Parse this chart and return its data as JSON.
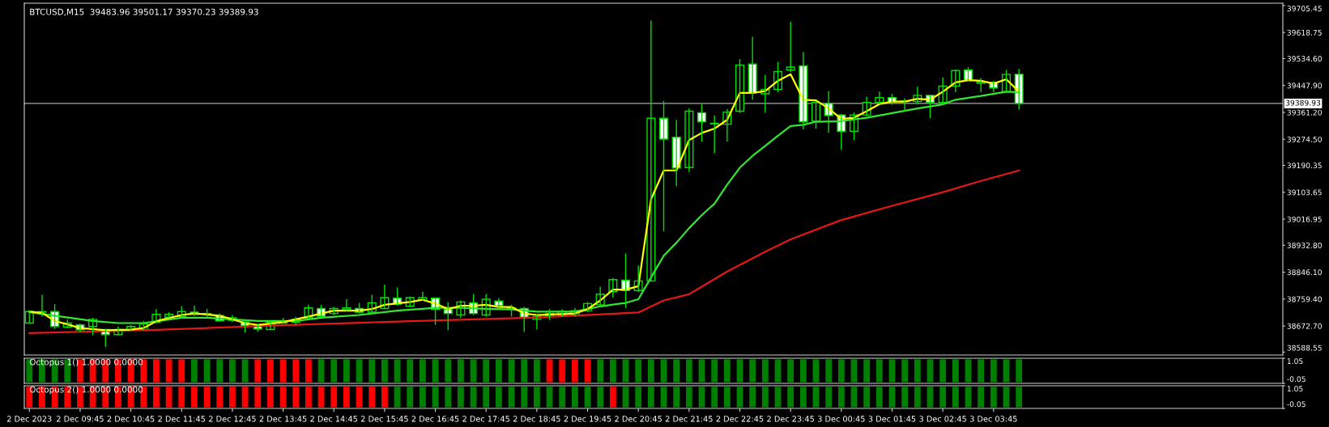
{
  "chart_data": [
    {
      "type": "candlestick",
      "title": "BTCUSD,M15  39483.96 39501.17 39370.23 39389.93",
      "tick_labels": "y",
      "x": [
        "2023-12-02T08:45",
        "2023-12-02T09:00",
        "2023-12-02T09:15",
        "2023-12-02T09:30",
        "2023-12-02T09:45",
        "2023-12-02T10:00",
        "2023-12-02T10:15",
        "2023-12-02T10:30",
        "2023-12-02T10:45",
        "2023-12-02T11:00",
        "2023-12-02T11:15",
        "2023-12-02T11:30",
        "2023-12-02T11:45",
        "2023-12-02T12:00",
        "2023-12-02T12:15",
        "2023-12-02T12:30",
        "2023-12-02T12:45",
        "2023-12-02T13:00",
        "2023-12-02T13:15",
        "2023-12-02T13:30",
        "2023-12-02T13:45",
        "2023-12-02T14:00",
        "2023-12-02T14:15",
        "2023-12-02T14:30",
        "2023-12-02T14:45",
        "2023-12-02T15:00",
        "2023-12-02T15:15",
        "2023-12-02T15:30",
        "2023-12-02T15:45",
        "2023-12-02T16:00",
        "2023-12-02T16:15",
        "2023-12-02T16:30",
        "2023-12-02T16:45",
        "2023-12-02T17:00",
        "2023-12-02T17:15",
        "2023-12-02T17:30",
        "2023-12-02T17:45",
        "2023-12-02T18:00",
        "2023-12-02T18:15",
        "2023-12-02T18:30",
        "2023-12-02T18:45",
        "2023-12-02T19:00",
        "2023-12-02T19:15",
        "2023-12-02T19:30",
        "2023-12-02T19:45",
        "2023-12-02T20:00",
        "2023-12-02T20:15",
        "2023-12-02T20:30",
        "2023-12-02T20:45",
        "2023-12-02T21:00",
        "2023-12-02T21:15",
        "2023-12-02T21:30",
        "2023-12-02T21:45",
        "2023-12-02T22:00",
        "2023-12-02T22:15",
        "2023-12-02T22:30",
        "2023-12-02T22:45",
        "2023-12-02T23:00",
        "2023-12-02T23:15",
        "2023-12-02T23:30",
        "2023-12-02T23:45",
        "2023-12-03T00:00",
        "2023-12-03T00:15",
        "2023-12-03T00:30",
        "2023-12-03T00:45",
        "2023-12-03T01:00",
        "2023-12-03T01:15",
        "2023-12-03T01:30",
        "2023-12-03T01:45",
        "2023-12-03T02:00",
        "2023-12-03T02:15",
        "2023-12-03T02:30",
        "2023-12-03T02:45",
        "2023-12-03T03:00",
        "2023-12-03T03:15",
        "2023-12-03T03:30",
        "2023-12-03T03:45",
        "2023-12-03T04:00",
        "2023-12-03T04:15"
      ],
      "ohlc": [
        [
          38682,
          38722,
          38680,
          38719
        ],
        [
          38717,
          38773,
          38703,
          38719
        ],
        [
          38719,
          38743,
          38663,
          38671
        ],
        [
          38669,
          38694,
          38666,
          38682
        ],
        [
          38676,
          38680,
          38652,
          38660
        ],
        [
          38671,
          38699,
          38643,
          38694
        ],
        [
          38661,
          38663,
          38606,
          38645
        ],
        [
          38645,
          38671,
          38643,
          38661
        ],
        [
          38661,
          38676,
          38657,
          38671
        ],
        [
          38661,
          38689,
          38657,
          38680
        ],
        [
          38685,
          38727,
          38680,
          38710
        ],
        [
          38701,
          38717,
          38699,
          38710
        ],
        [
          38703,
          38736,
          38699,
          38719
        ],
        [
          38717,
          38738,
          38705,
          38710
        ],
        [
          38711,
          38728,
          38702,
          38713
        ],
        [
          38706,
          38713,
          38688,
          38689
        ],
        [
          38691,
          38708,
          38685,
          38699
        ],
        [
          38685,
          38694,
          38652,
          38673
        ],
        [
          38675,
          38680,
          38654,
          38663
        ],
        [
          38661,
          38690,
          38660,
          38685
        ],
        [
          38682,
          38699,
          38680,
          38689
        ],
        [
          38685,
          38703,
          38676,
          38694
        ],
        [
          38699,
          38741,
          38694,
          38731
        ],
        [
          38729,
          38741,
          38699,
          38704
        ],
        [
          38713,
          38734,
          38708,
          38729
        ],
        [
          38725,
          38759,
          38719,
          38731
        ],
        [
          38729,
          38747,
          38713,
          38717
        ],
        [
          38717,
          38773,
          38713,
          38747
        ],
        [
          38729,
          38806,
          38727,
          38764
        ],
        [
          38762,
          38797,
          38738,
          38743
        ],
        [
          38736,
          38768,
          38734,
          38764
        ],
        [
          38756,
          38783,
          38754,
          38764
        ],
        [
          38762,
          38764,
          38676,
          38727
        ],
        [
          38727,
          38750,
          38659,
          38713
        ],
        [
          38708,
          38755,
          38699,
          38750
        ],
        [
          38747,
          38775,
          38708,
          38713
        ],
        [
          38708,
          38775,
          38703,
          38759
        ],
        [
          38753,
          38762,
          38731,
          38738
        ],
        [
          38731,
          38741,
          38703,
          38728
        ],
        [
          38729,
          38734,
          38654,
          38701
        ],
        [
          38694,
          38710,
          38662,
          38703
        ],
        [
          38704,
          38727,
          38692,
          38713
        ],
        [
          38708,
          38727,
          38703,
          38719
        ],
        [
          38708,
          38731,
          38703,
          38722
        ],
        [
          38722,
          38750,
          38717,
          38745
        ],
        [
          38741,
          38799,
          38736,
          38775
        ],
        [
          38783,
          38827,
          38764,
          38822
        ],
        [
          38820,
          38906,
          38731,
          38787
        ],
        [
          38787,
          38868,
          38782,
          38818
        ],
        [
          38818,
          39657,
          38815,
          39342
        ],
        [
          39342,
          39398,
          38978,
          39275
        ],
        [
          39281,
          39337,
          39123,
          39182
        ],
        [
          39183,
          39374,
          39169,
          39365
        ],
        [
          39360,
          39388,
          39267,
          39331
        ],
        [
          39326,
          39351,
          39230,
          39324
        ],
        [
          39323,
          39372,
          39267,
          39362
        ],
        [
          39365,
          39533,
          39359,
          39514
        ],
        [
          39517,
          39605,
          39402,
          39424
        ],
        [
          39421,
          39482,
          39360,
          39435
        ],
        [
          39435,
          39524,
          39426,
          39493
        ],
        [
          39498,
          39654,
          39491,
          39507
        ],
        [
          39511,
          39556,
          39306,
          39331
        ],
        [
          39333,
          39398,
          39309,
          39393
        ],
        [
          39390,
          39430,
          39295,
          39351
        ],
        [
          39353,
          39356,
          39241,
          39300
        ],
        [
          39300,
          39361,
          39272,
          39353
        ],
        [
          39353,
          39412,
          39349,
          39393
        ],
        [
          39393,
          39428,
          39388,
          39409
        ],
        [
          39409,
          39421,
          39386,
          39396
        ],
        [
          39396,
          39407,
          39365,
          39398
        ],
        [
          39396,
          39444,
          39388,
          39416
        ],
        [
          39416,
          39418,
          39342,
          39393
        ],
        [
          39393,
          39474,
          39388,
          39446
        ],
        [
          39446,
          39500,
          39426,
          39496
        ],
        [
          39498,
          39507,
          39461,
          39465
        ],
        [
          39455,
          39472,
          39426,
          39460
        ],
        [
          39458,
          39463,
          39426,
          39440
        ],
        [
          39428,
          39498,
          39426,
          39484
        ],
        [
          39483.96,
          39501.17,
          39370.23,
          39389.93
        ]
      ],
      "series": [
        {
          "type": "line",
          "color": "#e01818",
          "x": [
            "2023-12-02T08:45",
            "2023-12-02T11:15",
            "2023-12-02T13:45",
            "2023-12-02T16:15",
            "2023-12-02T18:45",
            "2023-12-02T20:45",
            "2023-12-02T21:15",
            "2023-12-02T21:45",
            "2023-12-02T22:30",
            "2023-12-02T23:15",
            "2023-12-02T23:45",
            "2023-12-03T00:45",
            "2023-12-03T01:45",
            "2023-12-03T02:45",
            "2023-12-03T03:30",
            "2023-12-03T04:15"
          ],
          "values": [
            38650,
            38660,
            38675,
            38688,
            38700,
            38716,
            38755,
            38775,
            38848,
            38912,
            38952,
            39014,
            39060,
            39104,
            39140,
            39174
          ]
        },
        {
          "type": "line",
          "color": "#32e632",
          "x": [
            "2023-12-02T08:45",
            "2023-12-02T09:15",
            "2023-12-02T10:00",
            "2023-12-02T10:30",
            "2023-12-02T11:00",
            "2023-12-02T11:45",
            "2023-12-02T12:15",
            "2023-12-02T12:45",
            "2023-12-02T13:15",
            "2023-12-02T14:00",
            "2023-12-02T14:30",
            "2023-12-02T15:15",
            "2023-12-02T16:00",
            "2023-12-02T16:45",
            "2023-12-02T17:15",
            "2023-12-02T17:45",
            "2023-12-02T18:15",
            "2023-12-02T18:45",
            "2023-12-02T19:30",
            "2023-12-02T20:00",
            "2023-12-02T20:30",
            "2023-12-02T20:45",
            "2023-12-02T21:00",
            "2023-12-02T21:15",
            "2023-12-02T21:30",
            "2023-12-02T21:45",
            "2023-12-02T22:00",
            "2023-12-02T22:15",
            "2023-12-02T22:30",
            "2023-12-02T22:45",
            "2023-12-02T23:00",
            "2023-12-02T23:15",
            "2023-12-02T23:30",
            "2023-12-02T23:45",
            "2023-12-03T00:00",
            "2023-12-03T00:15",
            "2023-12-03T00:45",
            "2023-12-03T01:15",
            "2023-12-03T01:45",
            "2023-12-03T02:15",
            "2023-12-03T02:45",
            "2023-12-03T03:00",
            "2023-12-03T03:30",
            "2023-12-03T04:00",
            "2023-12-03T04:15"
          ],
          "values": [
            38717,
            38706,
            38689,
            38682,
            38682,
            38699,
            38699,
            38694,
            38689,
            38689,
            38699,
            38708,
            38722,
            38731,
            38731,
            38728,
            38726,
            38719,
            38719,
            38736,
            38747,
            38759,
            38829,
            38899,
            38941,
            38988,
            39030,
            39067,
            39128,
            39183,
            39221,
            39253,
            39286,
            39317,
            39321,
            39331,
            39333,
            39344,
            39359,
            39374,
            39387,
            39402,
            39414,
            39428,
            39426
          ]
        },
        {
          "type": "line",
          "color": "#ffff00",
          "x": [
            "2023-12-02T08:45",
            "2023-12-02T09:00",
            "2023-12-02T09:15",
            "2023-12-02T09:45",
            "2023-12-02T10:15",
            "2023-12-02T10:45",
            "2023-12-02T11:00",
            "2023-12-02T11:15",
            "2023-12-02T11:45",
            "2023-12-02T12:00",
            "2023-12-02T12:30",
            "2023-12-02T13:00",
            "2023-12-02T13:15",
            "2023-12-02T13:45",
            "2023-12-02T14:15",
            "2023-12-02T14:45",
            "2023-12-02T15:15",
            "2023-12-02T15:30",
            "2023-12-02T15:45",
            "2023-12-02T16:15",
            "2023-12-02T16:30",
            "2023-12-02T16:45",
            "2023-12-02T17:00",
            "2023-12-02T17:15",
            "2023-12-02T17:30",
            "2023-12-02T17:45",
            "2023-12-02T18:00",
            "2023-12-02T18:15",
            "2023-12-02T18:30",
            "2023-12-02T18:45",
            "2023-12-02T19:30",
            "2023-12-02T19:45",
            "2023-12-02T20:00",
            "2023-12-02T20:15",
            "2023-12-02T20:30",
            "2023-12-02T20:45",
            "2023-12-02T21:00",
            "2023-12-02T21:15",
            "2023-12-02T21:30",
            "2023-12-02T21:45",
            "2023-12-02T22:00",
            "2023-12-02T22:15",
            "2023-12-02T22:30",
            "2023-12-02T22:45",
            "2023-12-02T23:00",
            "2023-12-02T23:15",
            "2023-12-02T23:30",
            "2023-12-02T23:45",
            "2023-12-03T00:00",
            "2023-12-03T00:15",
            "2023-12-03T00:30",
            "2023-12-03T00:45",
            "2023-12-03T01:00",
            "2023-12-03T01:15",
            "2023-12-03T01:30",
            "2023-12-03T01:45",
            "2023-12-03T02:00",
            "2023-12-03T02:15",
            "2023-12-03T02:30",
            "2023-12-03T02:45",
            "2023-12-03T03:00",
            "2023-12-03T03:15",
            "2023-12-03T03:30",
            "2023-12-03T03:45",
            "2023-12-03T04:00",
            "2023-12-03T04:15"
          ],
          "values": [
            38719,
            38715,
            38689,
            38666,
            38659,
            38661,
            38666,
            38688,
            38708,
            38713,
            38706,
            38682,
            38676,
            38685,
            38703,
            38722,
            38722,
            38727,
            38741,
            38750,
            38757,
            38745,
            38727,
            38738,
            38738,
            38741,
            38734,
            38734,
            38713,
            38708,
            38713,
            38727,
            38755,
            38790,
            38790,
            38801,
            39081,
            39174,
            39174,
            39272,
            39295,
            39309,
            39337,
            39424,
            39424,
            39430,
            39463,
            39484,
            39402,
            39400,
            39374,
            39340,
            39344,
            39365,
            39388,
            39396,
            39396,
            39405,
            39402,
            39428,
            39458,
            39465,
            39463,
            39454,
            39468,
            39428
          ]
        }
      ],
      "xlim": [
        "2023-12-02T08:39",
        "2023-12-03T09:27"
      ],
      "ylim": [
        38579,
        39713
      ],
      "yticks": [
        39705.45,
        39618.75,
        {
          "value": 39534.6,
          "label": "39534.60"
        },
        {
          "value": 39447.9,
          "label": "39447.90"
        },
        {
          "value": 39361.2,
          "label": "39361.20"
        },
        {
          "value": 39274.5,
          "label": "39274.50"
        },
        39190.35,
        39103.65,
        39016.95,
        {
          "value": 38932.8,
          "label": "38932.80"
        },
        {
          "value": 38846.1,
          "label": "38846.10"
        },
        {
          "value": 38759.4,
          "label": "38759.40"
        },
        {
          "value": 38672.7,
          "label": "38672.70"
        },
        38588.55
      ],
      "ref_lines": [
        {
          "axis": "y",
          "value": 39389.93,
          "label": "39389.93",
          "color": "#a8a8a8"
        }
      ]
    },
    {
      "type": "bar",
      "title": "Octopus 1() 1.0000 0.0000",
      "tick_labels": "y",
      "x": [
        "2023-12-02T08:45",
        "2023-12-02T09:00",
        "2023-12-02T09:15",
        "2023-12-02T09:30",
        "2023-12-02T09:45",
        "2023-12-02T10:00",
        "2023-12-02T10:15",
        "2023-12-02T10:30",
        "2023-12-02T10:45",
        "2023-12-02T11:00",
        "2023-12-02T11:15",
        "2023-12-02T11:30",
        "2023-12-02T11:45",
        "2023-12-02T12:00",
        "2023-12-02T12:15",
        "2023-12-02T12:30",
        "2023-12-02T12:45",
        "2023-12-02T13:00",
        "2023-12-02T13:15",
        "2023-12-02T13:30",
        "2023-12-02T13:45",
        "2023-12-02T14:00",
        "2023-12-02T14:15",
        "2023-12-02T14:30",
        "2023-12-02T14:45",
        "2023-12-02T15:00",
        "2023-12-02T15:15",
        "2023-12-02T15:30",
        "2023-12-02T15:45",
        "2023-12-02T16:00",
        "2023-12-02T16:15",
        "2023-12-02T16:30",
        "2023-12-02T16:45",
        "2023-12-02T17:00",
        "2023-12-02T17:15",
        "2023-12-02T17:30",
        "2023-12-02T17:45",
        "2023-12-02T18:00",
        "2023-12-02T18:15",
        "2023-12-02T18:30",
        "2023-12-02T18:45",
        "2023-12-02T19:00",
        "2023-12-02T19:15",
        "2023-12-02T19:30",
        "2023-12-02T19:45",
        "2023-12-02T20:00",
        "2023-12-02T20:15",
        "2023-12-02T20:30",
        "2023-12-02T20:45",
        "2023-12-02T21:00",
        "2023-12-02T21:15",
        "2023-12-02T21:30",
        "2023-12-02T21:45",
        "2023-12-02T22:00",
        "2023-12-02T22:15",
        "2023-12-02T22:30",
        "2023-12-02T22:45",
        "2023-12-02T23:00",
        "2023-12-02T23:15",
        "2023-12-02T23:30",
        "2023-12-02T23:45",
        "2023-12-03T00:00",
        "2023-12-03T00:15",
        "2023-12-03T00:30",
        "2023-12-03T00:45",
        "2023-12-03T01:00",
        "2023-12-03T01:15",
        "2023-12-03T01:30",
        "2023-12-03T01:45",
        "2023-12-03T02:00",
        "2023-12-03T02:15",
        "2023-12-03T02:30",
        "2023-12-03T02:45",
        "2023-12-03T03:00",
        "2023-12-03T03:15",
        "2023-12-03T03:30",
        "2023-12-03T03:45",
        "2023-12-03T04:00",
        "2023-12-03T04:15"
      ],
      "values": [
        1,
        1,
        1,
        1,
        1,
        1,
        1,
        1,
        1,
        1,
        1,
        1,
        1,
        1,
        1,
        1,
        1,
        1,
        1,
        1,
        1,
        1,
        1,
        1,
        1,
        1,
        1,
        1,
        1,
        1,
        1,
        1,
        1,
        1,
        1,
        1,
        1,
        1,
        1,
        1,
        1,
        1,
        1,
        1,
        1,
        1,
        1,
        1,
        1,
        1,
        1,
        1,
        1,
        1,
        1,
        1,
        1,
        1,
        1,
        1,
        1,
        1,
        1,
        1,
        1,
        1,
        1,
        1,
        1,
        1,
        1,
        1,
        1,
        1,
        1,
        1,
        1,
        1,
        1
      ],
      "colors": [
        "#008000",
        "#008000",
        "#008000",
        "#008000",
        "#ff0000",
        "#ff0000",
        "#ff0000",
        "#ff0000",
        "#ff0000",
        "#ff0000",
        "#ff0000",
        "#ff0000",
        "#ff0000",
        "#008000",
        "#008000",
        "#008000",
        "#008000",
        "#008000",
        "#ff0000",
        "#ff0000",
        "#ff0000",
        "#ff0000",
        "#ff0000",
        "#008000",
        "#008000",
        "#008000",
        "#008000",
        "#008000",
        "#008000",
        "#008000",
        "#008000",
        "#008000",
        "#008000",
        "#008000",
        "#008000",
        "#008000",
        "#008000",
        "#008000",
        "#008000",
        "#008000",
        "#008000",
        "#ff0000",
        "#ff0000",
        "#ff0000",
        "#ff0000",
        "#008000",
        "#008000",
        "#008000",
        "#008000",
        "#008000",
        "#008000",
        "#008000",
        "#008000",
        "#008000",
        "#008000",
        "#008000",
        "#008000",
        "#008000",
        "#008000",
        "#008000",
        "#008000",
        "#008000",
        "#008000",
        "#008000",
        "#008000",
        "#008000",
        "#008000",
        "#008000",
        "#008000",
        "#008000",
        "#008000",
        "#008000",
        "#008000",
        "#008000",
        "#008000",
        "#008000",
        "#008000",
        "#008000",
        "#008000"
      ],
      "xlim": [
        "2023-12-02T08:39",
        "2023-12-03T09:27"
      ],
      "ylim": [
        -0.05,
        1.05
      ],
      "yticks": [
        1.05,
        -0.05
      ]
    },
    {
      "type": "bar",
      "title": "Octopus 2() 1.0000 0.0000",
      "x": [
        "2023-12-02T08:45",
        "2023-12-02T09:00",
        "2023-12-02T09:15",
        "2023-12-02T09:30",
        "2023-12-02T09:45",
        "2023-12-02T10:00",
        "2023-12-02T10:15",
        "2023-12-02T10:30",
        "2023-12-02T10:45",
        "2023-12-02T11:00",
        "2023-12-02T11:15",
        "2023-12-02T11:30",
        "2023-12-02T11:45",
        "2023-12-02T12:00",
        "2023-12-02T12:15",
        "2023-12-02T12:30",
        "2023-12-02T12:45",
        "2023-12-02T13:00",
        "2023-12-02T13:15",
        "2023-12-02T13:30",
        "2023-12-02T13:45",
        "2023-12-02T14:00",
        "2023-12-02T14:15",
        "2023-12-02T14:30",
        "2023-12-02T14:45",
        "2023-12-02T15:00",
        "2023-12-02T15:15",
        "2023-12-02T15:30",
        "2023-12-02T15:45",
        "2023-12-02T16:00",
        "2023-12-02T16:15",
        "2023-12-02T16:30",
        "2023-12-02T16:45",
        "2023-12-02T17:00",
        "2023-12-02T17:15",
        "2023-12-02T17:30",
        "2023-12-02T17:45",
        "2023-12-02T18:00",
        "2023-12-02T18:15",
        "2023-12-02T18:30",
        "2023-12-02T18:45",
        "2023-12-02T19:00",
        "2023-12-02T19:15",
        "2023-12-02T19:30",
        "2023-12-02T19:45",
        "2023-12-02T20:00",
        "2023-12-02T20:15",
        "2023-12-02T20:30",
        "2023-12-02T20:45",
        "2023-12-02T21:00",
        "2023-12-02T21:15",
        "2023-12-02T21:30",
        "2023-12-02T21:45",
        "2023-12-02T22:00",
        "2023-12-02T22:15",
        "2023-12-02T22:30",
        "2023-12-02T22:45",
        "2023-12-02T23:00",
        "2023-12-02T23:15",
        "2023-12-02T23:30",
        "2023-12-02T23:45",
        "2023-12-03T00:00",
        "2023-12-03T00:15",
        "2023-12-03T00:30",
        "2023-12-03T00:45",
        "2023-12-03T01:00",
        "2023-12-03T01:15",
        "2023-12-03T01:30",
        "2023-12-03T01:45",
        "2023-12-03T02:00",
        "2023-12-03T02:15",
        "2023-12-03T02:30",
        "2023-12-03T02:45",
        "2023-12-03T03:00",
        "2023-12-03T03:15",
        "2023-12-03T03:30",
        "2023-12-03T03:45",
        "2023-12-03T04:00",
        "2023-12-03T04:15"
      ],
      "values": [
        1,
        1,
        1,
        1,
        1,
        1,
        1,
        1,
        1,
        1,
        1,
        1,
        1,
        1,
        1,
        1,
        1,
        1,
        1,
        1,
        1,
        1,
        1,
        1,
        1,
        1,
        1,
        1,
        1,
        1,
        1,
        1,
        1,
        1,
        1,
        1,
        1,
        1,
        1,
        1,
        1,
        1,
        1,
        1,
        1,
        1,
        1,
        1,
        1,
        1,
        1,
        1,
        1,
        1,
        1,
        1,
        1,
        1,
        1,
        1,
        1,
        1,
        1,
        1,
        1,
        1,
        1,
        1,
        1,
        1,
        1,
        1,
        1,
        1,
        1,
        1,
        1,
        1,
        1
      ],
      "colors": [
        "#ff0000",
        "#ff0000",
        "#ff0000",
        "#ff0000",
        "#ff0000",
        "#ff0000",
        "#ff0000",
        "#ff0000",
        "#ff0000",
        "#ff0000",
        "#ff0000",
        "#ff0000",
        "#ff0000",
        "#ff0000",
        "#ff0000",
        "#ff0000",
        "#ff0000",
        "#ff0000",
        "#ff0000",
        "#ff0000",
        "#ff0000",
        "#ff0000",
        "#ff0000",
        "#ff0000",
        "#ff0000",
        "#ff0000",
        "#ff0000",
        "#ff0000",
        "#ff0000",
        "#008000",
        "#008000",
        "#008000",
        "#008000",
        "#008000",
        "#008000",
        "#008000",
        "#008000",
        "#008000",
        "#008000",
        "#008000",
        "#008000",
        "#008000",
        "#008000",
        "#008000",
        "#008000",
        "#008000",
        "#ff0000",
        "#008000",
        "#008000",
        "#008000",
        "#008000",
        "#008000",
        "#008000",
        "#008000",
        "#008000",
        "#008000",
        "#008000",
        "#008000",
        "#008000",
        "#008000",
        "#008000",
        "#008000",
        "#008000",
        "#008000",
        "#008000",
        "#008000",
        "#008000",
        "#008000",
        "#008000",
        "#008000",
        "#008000",
        "#008000",
        "#008000",
        "#008000",
        "#008000",
        "#008000",
        "#008000",
        "#008000",
        "#008000"
      ],
      "xlim": [
        "2023-12-02T08:39",
        "2023-12-03T09:27"
      ],
      "xticks": [
        {
          "value": "2023-12-02T08:45",
          "label": "2 Dec 2023"
        },
        {
          "value": "2023-12-02T09:45",
          "label": "2 Dec 09:45"
        },
        {
          "value": "2023-12-02T10:45",
          "label": "2 Dec 10:45"
        },
        {
          "value": "2023-12-02T11:45",
          "label": "2 Dec 11:45"
        },
        {
          "value": "2023-12-02T12:45",
          "label": "2 Dec 12:45"
        },
        {
          "value": "2023-12-02T13:45",
          "label": "2 Dec 13:45"
        },
        {
          "value": "2023-12-02T14:45",
          "label": "2 Dec 14:45"
        },
        {
          "value": "2023-12-02T15:45",
          "label": "2 Dec 15:45"
        },
        {
          "value": "2023-12-02T16:45",
          "label": "2 Dec 16:45"
        },
        {
          "value": "2023-12-02T17:45",
          "label": "2 Dec 17:45"
        },
        {
          "value": "2023-12-02T18:45",
          "label": "2 Dec 18:45"
        },
        {
          "value": "2023-12-02T19:45",
          "label": "2 Dec 19:45"
        },
        {
          "value": "2023-12-02T20:45",
          "label": "2 Dec 20:45"
        },
        {
          "value": "2023-12-02T21:45",
          "label": "2 Dec 21:45"
        },
        {
          "value": "2023-12-02T22:45",
          "label": "2 Dec 22:45"
        },
        {
          "value": "2023-12-02T23:45",
          "label": "2 Dec 23:45"
        },
        {
          "value": "2023-12-03T00:45",
          "label": "3 Dec 00:45"
        },
        {
          "value": "2023-12-03T01:45",
          "label": "3 Dec 01:45"
        },
        {
          "value": "2023-12-03T02:45",
          "label": "3 Dec 02:45"
        },
        {
          "value": "2023-12-03T03:45",
          "label": "3 Dec 03:45"
        }
      ],
      "ylim": [
        -0.05,
        1.05
      ],
      "yticks": [
        1.05,
        -0.05
      ]
    }
  ]
}
